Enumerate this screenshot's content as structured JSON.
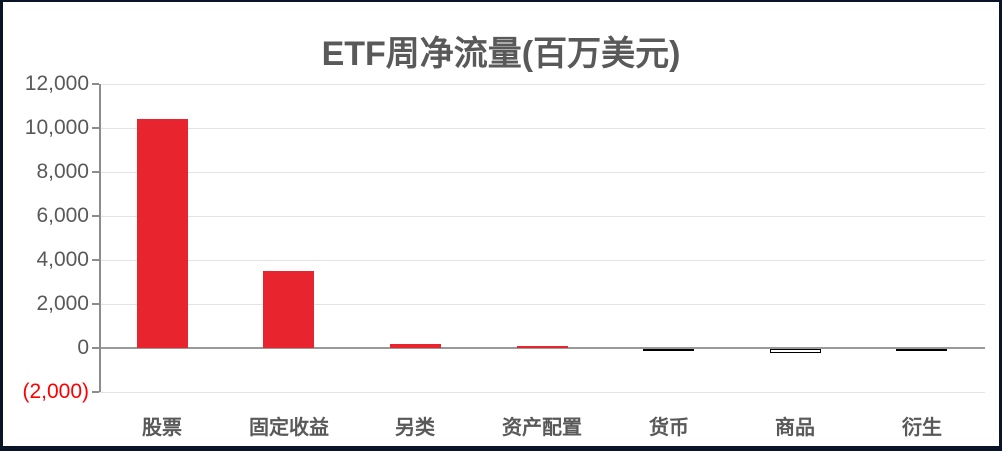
{
  "chart_data": {
    "type": "bar",
    "title": "ETF周净流量(百万美元)",
    "categories": [
      "股票",
      "固定收益",
      "另类",
      "资产配置",
      "货币",
      "商品",
      "衍生"
    ],
    "values": [
      10400,
      3500,
      200,
      80,
      -80,
      -160,
      -90
    ],
    "xlabel": "",
    "ylabel": "",
    "ylim": [
      -2000,
      12000
    ],
    "ytick_interval": 2000,
    "yticks": [
      {
        "label": "12,000",
        "value": 12000,
        "negative": false
      },
      {
        "label": "10,000",
        "value": 10000,
        "negative": false
      },
      {
        "label": "8,000",
        "value": 8000,
        "negative": false
      },
      {
        "label": "6,000",
        "value": 6000,
        "negative": false
      },
      {
        "label": "4,000",
        "value": 4000,
        "negative": false
      },
      {
        "label": "2,000",
        "value": 2000,
        "negative": false
      },
      {
        "label": "0",
        "value": 0,
        "negative": false
      },
      {
        "label": "(2,000)",
        "value": -2000,
        "negative": true
      }
    ],
    "grid": true,
    "legend": false
  },
  "colors": {
    "bar_positive": "#e8252f",
    "bar_negative_fill": "#ffffff",
    "bar_negative_border": "#000000",
    "negative_tick_text": "#ff0000",
    "text": "#595959",
    "gridline": "#e3e3e3",
    "axis_line": "#8c8c8c",
    "zero_line": "#999999",
    "frame_border": "#0a1426",
    "background": "#ffffff"
  }
}
